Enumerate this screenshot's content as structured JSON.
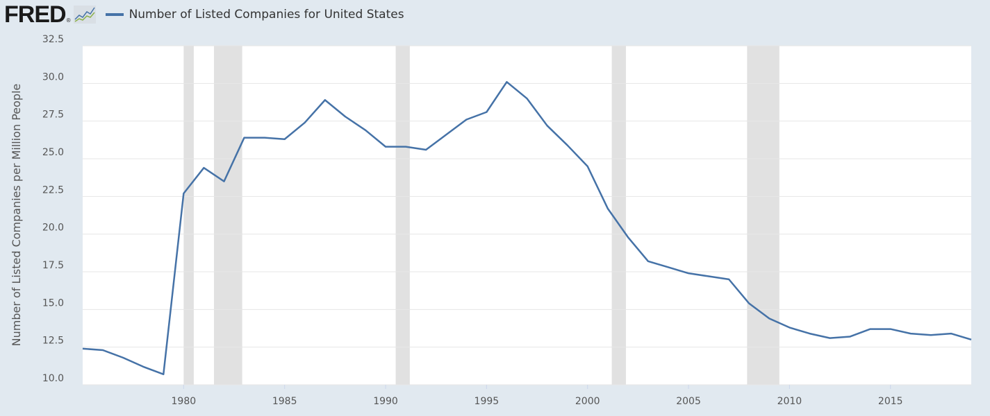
{
  "header": {
    "logo": "FRED",
    "logo_mark": "®"
  },
  "colors": {
    "line": "#4572a7",
    "recession": "#e1e1e1",
    "grid": "#e6e6e6",
    "background": "#e1e9f0",
    "plot_bg": "#ffffff"
  },
  "chart_data": {
    "type": "line",
    "title": "",
    "xlabel": "",
    "ylabel": "Number of Listed Companies per Million People",
    "xlim": [
      1975,
      2019
    ],
    "ylim": [
      10.0,
      32.5
    ],
    "grid": true,
    "legend_placement": "top-left",
    "x_ticks": [
      "1980",
      "1985",
      "1990",
      "1995",
      "2000",
      "2005",
      "2010",
      "2015"
    ],
    "y_ticks": [
      "10.0",
      "12.5",
      "15.0",
      "17.5",
      "20.0",
      "22.5",
      "25.0",
      "27.5",
      "30.0",
      "32.5"
    ],
    "recessions": [
      [
        1980.0,
        1980.5
      ],
      [
        1981.5,
        1982.9
      ],
      [
        1990.5,
        1991.2
      ],
      [
        2001.2,
        2001.9
      ],
      [
        2007.9,
        2009.5
      ]
    ],
    "series": [
      {
        "name": "Number of Listed Companies for United States",
        "x": [
          1975,
          1976,
          1977,
          1978,
          1979,
          1980,
          1981,
          1982,
          1983,
          1984,
          1985,
          1986,
          1987,
          1988,
          1989,
          1990,
          1991,
          1992,
          1993,
          1994,
          1995,
          1996,
          1997,
          1998,
          1999,
          2000,
          2001,
          2002,
          2003,
          2004,
          2005,
          2006,
          2007,
          2008,
          2009,
          2010,
          2011,
          2012,
          2013,
          2014,
          2015,
          2016,
          2017,
          2018,
          2019
        ],
        "y": [
          12.4,
          12.3,
          11.8,
          11.2,
          10.7,
          22.7,
          24.4,
          23.5,
          26.4,
          26.4,
          26.3,
          27.4,
          28.9,
          27.8,
          26.9,
          25.8,
          25.8,
          25.6,
          26.6,
          27.6,
          28.1,
          30.1,
          29.0,
          27.2,
          25.9,
          24.5,
          21.7,
          19.8,
          18.2,
          17.8,
          17.4,
          17.2,
          17.0,
          15.4,
          14.4,
          13.8,
          13.4,
          13.1,
          13.2,
          13.7,
          13.7,
          13.4,
          13.3,
          13.4,
          13.0
        ]
      }
    ]
  }
}
